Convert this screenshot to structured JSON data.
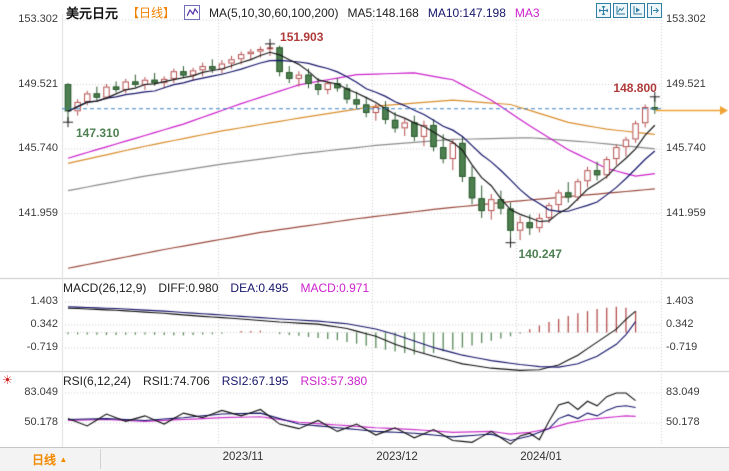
{
  "header": {
    "symbol": "美元日元",
    "period_tag": "【日线】",
    "ma_settings": "MA(5,10,30,60,100,200)",
    "ma5": "MA5:148.168",
    "ma10": "MA10:147.198",
    "ma30_truncated": "MA3"
  },
  "toolbar": {
    "icons": [
      "move-crosshair",
      "chart-scale",
      "chart-play",
      "export-right"
    ]
  },
  "axes": {
    "price_labels": [
      "153.302",
      "149.521",
      "145.740",
      "141.959"
    ],
    "macd_labels": [
      "1.403",
      "0.342",
      "-0.719"
    ],
    "rsi_labels": [
      "83.049",
      "50.178"
    ],
    "time_labels": [
      "2023/11",
      "2023/12",
      "2024/01"
    ]
  },
  "panels": {
    "macd_header": {
      "title": "MACD(26,12,9)",
      "diff": "DIFF:0.980",
      "dea": "DEA:0.495",
      "macd": "MACD:0.971"
    },
    "rsi_header": {
      "title": "RSI(6,12,24)",
      "rsi1": "RSI1:74.706",
      "rsi2": "RSI2:67.195",
      "rsi3": "RSI3:57.380"
    }
  },
  "footer": {
    "period_label": "日线",
    "arrow": "▲"
  },
  "colors": {
    "up": "#b5504f",
    "up_fill": "#ffffff",
    "down": "#4d7f4f",
    "down_border": "#2e5c31",
    "ma5": "#1a1a1a",
    "ma10": "#16166b",
    "ma30": "#cc22cc",
    "ma60": "#d98f2e",
    "ma100": "#8c8c8c",
    "ma200": "#9a4a3d",
    "grid": "#cfcfcf",
    "separator": "#c9c9c9",
    "dashed_line": "#3e86c9",
    "price_line": "#f0a232",
    "hist_up": "#b5504f",
    "hist_down": "#5a8a5a",
    "diff": "#111111",
    "dea": "#16166b",
    "rsi1": "#111111",
    "rsi2": "#16166b",
    "rsi3": "#cc33cc",
    "marker_cross": "#222222"
  },
  "chart_data": {
    "type": "candlestick",
    "title": "美元日元 日线 (USD/JPY daily)",
    "price_gridlines": [
      153.302,
      149.521,
      145.74,
      141.959
    ],
    "macd_gridlines": [
      1.403,
      0.342,
      -0.719
    ],
    "rsi_gridlines": [
      83.049,
      50.178
    ],
    "time_labels": [
      "2023/11",
      "2023/12",
      "2024/01"
    ],
    "candles": [
      [
        149.55,
        149.6,
        147.31,
        147.95
      ],
      [
        147.95,
        148.65,
        147.7,
        148.5
      ],
      [
        148.5,
        149.15,
        148.3,
        149.0
      ],
      [
        149.0,
        149.4,
        148.6,
        148.75
      ],
      [
        148.75,
        149.55,
        148.65,
        149.4
      ],
      [
        149.4,
        149.7,
        149.05,
        149.2
      ],
      [
        149.2,
        149.85,
        149.0,
        149.7
      ],
      [
        149.7,
        150.1,
        149.35,
        149.5
      ],
      [
        149.5,
        149.95,
        149.2,
        149.8
      ],
      [
        149.8,
        150.2,
        149.45,
        149.6
      ],
      [
        149.6,
        150.0,
        149.3,
        149.85
      ],
      [
        149.85,
        150.45,
        149.6,
        150.3
      ],
      [
        150.3,
        150.6,
        149.9,
        150.05
      ],
      [
        150.05,
        150.5,
        149.75,
        150.35
      ],
      [
        150.35,
        150.8,
        150.0,
        150.6
      ],
      [
        150.6,
        151.0,
        150.2,
        150.4
      ],
      [
        150.4,
        150.95,
        150.15,
        150.75
      ],
      [
        150.75,
        151.2,
        150.45,
        151.0
      ],
      [
        151.0,
        151.45,
        150.7,
        151.3
      ],
      [
        151.3,
        151.6,
        150.95,
        151.45
      ],
      [
        151.45,
        151.75,
        151.1,
        151.6
      ],
      [
        151.6,
        151.903,
        151.2,
        151.7
      ],
      [
        151.7,
        151.8,
        150.0,
        150.25
      ],
      [
        150.25,
        150.6,
        149.6,
        149.85
      ],
      [
        149.85,
        150.3,
        149.4,
        150.1
      ],
      [
        150.1,
        150.45,
        149.3,
        149.55
      ],
      [
        149.55,
        149.9,
        148.9,
        149.2
      ],
      [
        149.2,
        149.75,
        148.95,
        149.6
      ],
      [
        149.6,
        149.9,
        149.1,
        149.3
      ],
      [
        149.3,
        149.55,
        148.4,
        148.65
      ],
      [
        148.65,
        149.1,
        148.1,
        148.35
      ],
      [
        148.35,
        148.8,
        147.6,
        147.85
      ],
      [
        147.85,
        148.4,
        147.4,
        148.2
      ],
      [
        148.2,
        148.55,
        147.2,
        147.45
      ],
      [
        147.45,
        147.9,
        146.7,
        146.95
      ],
      [
        146.95,
        147.5,
        146.5,
        147.3
      ],
      [
        147.3,
        147.7,
        146.2,
        146.45
      ],
      [
        146.45,
        147.4,
        145.9,
        147.15
      ],
      [
        147.15,
        147.5,
        145.6,
        145.85
      ],
      [
        145.85,
        146.6,
        144.9,
        145.15
      ],
      [
        145.15,
        146.3,
        144.5,
        146.1
      ],
      [
        146.1,
        146.45,
        143.8,
        144.1
      ],
      [
        144.1,
        144.75,
        142.5,
        142.85
      ],
      [
        142.85,
        143.6,
        141.7,
        142.1
      ],
      [
        142.1,
        143.1,
        141.6,
        142.8
      ],
      [
        142.8,
        143.3,
        141.9,
        142.25
      ],
      [
        142.25,
        142.6,
        140.247,
        140.95
      ],
      [
        140.95,
        141.8,
        140.4,
        141.45
      ],
      [
        141.45,
        141.9,
        140.7,
        141.1
      ],
      [
        141.1,
        141.95,
        140.85,
        141.7
      ],
      [
        141.7,
        142.6,
        141.4,
        142.45
      ],
      [
        142.45,
        143.35,
        142.1,
        143.2
      ],
      [
        143.2,
        143.8,
        142.6,
        142.9
      ],
      [
        142.9,
        144.0,
        142.7,
        143.85
      ],
      [
        143.85,
        144.7,
        143.5,
        144.5
      ],
      [
        144.5,
        145.0,
        143.9,
        144.2
      ],
      [
        144.2,
        145.3,
        144.0,
        145.15
      ],
      [
        145.15,
        146.0,
        144.8,
        145.85
      ],
      [
        145.85,
        146.45,
        145.3,
        146.3
      ],
      [
        146.3,
        147.4,
        146.1,
        147.25
      ],
      [
        147.25,
        148.35,
        147.0,
        148.2
      ],
      [
        148.2,
        148.8,
        147.8,
        148.05
      ]
    ],
    "ma_overlays": {
      "ma30": [
        [
          0,
          145.2
        ],
        [
          6,
          146.2
        ],
        [
          12,
          147.2
        ],
        [
          18,
          148.4
        ],
        [
          24,
          149.5
        ],
        [
          30,
          150.1
        ],
        [
          36,
          150.2
        ],
        [
          40,
          149.8
        ],
        [
          44,
          148.6
        ],
        [
          48,
          147.1
        ],
        [
          52,
          145.7
        ],
        [
          56,
          144.6
        ],
        [
          59,
          144.15
        ],
        [
          61,
          144.3
        ]
      ],
      "ma60": [
        [
          0,
          144.9
        ],
        [
          8,
          145.9
        ],
        [
          16,
          146.8
        ],
        [
          24,
          147.55
        ],
        [
          32,
          148.25
        ],
        [
          40,
          148.6
        ],
        [
          46,
          148.35
        ],
        [
          52,
          147.3
        ],
        [
          56,
          146.9
        ],
        [
          61,
          146.6
        ]
      ],
      "ma100": [
        [
          0,
          143.3
        ],
        [
          8,
          144.15
        ],
        [
          16,
          144.85
        ],
        [
          24,
          145.45
        ],
        [
          32,
          145.95
        ],
        [
          40,
          146.3
        ],
        [
          48,
          146.4
        ],
        [
          54,
          146.15
        ],
        [
          61,
          145.75
        ]
      ],
      "ma200": [
        [
          0,
          138.75
        ],
        [
          10,
          139.85
        ],
        [
          20,
          140.85
        ],
        [
          30,
          141.65
        ],
        [
          38,
          142.2
        ],
        [
          46,
          142.65
        ],
        [
          54,
          143.05
        ],
        [
          61,
          143.4
        ]
      ]
    },
    "price_lines": {
      "dashed_blue": 148.1,
      "solid_orange": 148.0
    },
    "macd": {
      "last_index": 59,
      "diff": [
        [
          0,
          1.12
        ],
        [
          5,
          1.02
        ],
        [
          10,
          0.88
        ],
        [
          14,
          0.74
        ],
        [
          18,
          0.62
        ],
        [
          22,
          0.48
        ],
        [
          26,
          0.38
        ],
        [
          29,
          0.18
        ],
        [
          32,
          -0.18
        ],
        [
          34,
          -0.55
        ],
        [
          36,
          -0.85
        ],
        [
          38,
          -1.1
        ],
        [
          41,
          -1.45
        ],
        [
          44,
          -1.65
        ],
        [
          47,
          -1.75
        ],
        [
          49,
          -1.72
        ],
        [
          51,
          -1.5
        ],
        [
          53,
          -1.05
        ],
        [
          55,
          -0.45
        ],
        [
          57,
          0.15
        ],
        [
          58,
          0.6
        ],
        [
          59,
          0.98
        ]
      ],
      "dea": [
        [
          0,
          1.18
        ],
        [
          5,
          1.1
        ],
        [
          10,
          0.98
        ],
        [
          14,
          0.86
        ],
        [
          18,
          0.74
        ],
        [
          22,
          0.62
        ],
        [
          26,
          0.52
        ],
        [
          29,
          0.4
        ],
        [
          32,
          0.16
        ],
        [
          34,
          -0.1
        ],
        [
          36,
          -0.4
        ],
        [
          38,
          -0.7
        ],
        [
          41,
          -1.05
        ],
        [
          44,
          -1.3
        ],
        [
          47,
          -1.48
        ],
        [
          49,
          -1.58
        ],
        [
          51,
          -1.6
        ],
        [
          53,
          -1.45
        ],
        [
          55,
          -1.1
        ],
        [
          57,
          -0.55
        ],
        [
          58,
          -0.1
        ],
        [
          59,
          0.495
        ]
      ],
      "hist": [
        [
          0,
          -0.08
        ],
        [
          4,
          -0.12
        ],
        [
          8,
          -0.1
        ],
        [
          12,
          -0.14
        ],
        [
          16,
          -0.06
        ],
        [
          18,
          0.06
        ],
        [
          20,
          0.08
        ],
        [
          22,
          -0.08
        ],
        [
          24,
          -0.16
        ],
        [
          26,
          -0.26
        ],
        [
          28,
          -0.36
        ],
        [
          30,
          -0.52
        ],
        [
          32,
          -0.72
        ],
        [
          34,
          -0.88
        ],
        [
          36,
          -1.02
        ],
        [
          38,
          -0.95
        ],
        [
          40,
          -0.8
        ],
        [
          42,
          -0.6
        ],
        [
          44,
          -0.38
        ],
        [
          46,
          -0.18
        ],
        [
          47,
          -0.06
        ],
        [
          48,
          0.14
        ],
        [
          49,
          0.32
        ],
        [
          50,
          0.48
        ],
        [
          51,
          0.62
        ],
        [
          52,
          0.76
        ],
        [
          53,
          0.88
        ],
        [
          54,
          0.98
        ],
        [
          55,
          1.08
        ],
        [
          56,
          1.14
        ],
        [
          57,
          1.18
        ],
        [
          58,
          1.14
        ],
        [
          59,
          0.971
        ]
      ]
    },
    "rsi": {
      "last_index": 59,
      "rsi1": [
        [
          0,
          55
        ],
        [
          2,
          47
        ],
        [
          4,
          60
        ],
        [
          6,
          52
        ],
        [
          8,
          58
        ],
        [
          10,
          49
        ],
        [
          12,
          61
        ],
        [
          14,
          56
        ],
        [
          16,
          64
        ],
        [
          18,
          58
        ],
        [
          20,
          65
        ],
        [
          22,
          49
        ],
        [
          24,
          44
        ],
        [
          26,
          53
        ],
        [
          28,
          41
        ],
        [
          30,
          49
        ],
        [
          32,
          37
        ],
        [
          34,
          45
        ],
        [
          36,
          34
        ],
        [
          38,
          43
        ],
        [
          40,
          31
        ],
        [
          42,
          29
        ],
        [
          44,
          41
        ],
        [
          46,
          27
        ],
        [
          47,
          36
        ],
        [
          48,
          39
        ],
        [
          49,
          32
        ],
        [
          50,
          52
        ],
        [
          51,
          70
        ],
        [
          52,
          73
        ],
        [
          53,
          65
        ],
        [
          54,
          74
        ],
        [
          55,
          69
        ],
        [
          56,
          79
        ],
        [
          57,
          83
        ],
        [
          58,
          83
        ],
        [
          59,
          74.706
        ]
      ],
      "rsi2": [
        [
          0,
          54
        ],
        [
          4,
          55
        ],
        [
          8,
          53
        ],
        [
          12,
          56
        ],
        [
          16,
          60
        ],
        [
          20,
          61
        ],
        [
          24,
          49
        ],
        [
          28,
          45
        ],
        [
          32,
          41
        ],
        [
          36,
          39
        ],
        [
          40,
          35
        ],
        [
          44,
          38
        ],
        [
          46,
          31
        ],
        [
          48,
          36
        ],
        [
          50,
          44
        ],
        [
          51,
          55
        ],
        [
          52,
          59
        ],
        [
          53,
          55
        ],
        [
          54,
          61
        ],
        [
          55,
          58
        ],
        [
          56,
          64
        ],
        [
          57,
          68
        ],
        [
          58,
          69
        ],
        [
          59,
          67.195
        ]
      ],
      "rsi3": [
        [
          0,
          53
        ],
        [
          4,
          54
        ],
        [
          8,
          52
        ],
        [
          12,
          54
        ],
        [
          16,
          56
        ],
        [
          20,
          57
        ],
        [
          24,
          51
        ],
        [
          28,
          48
        ],
        [
          32,
          45
        ],
        [
          36,
          43
        ],
        [
          40,
          40
        ],
        [
          44,
          41
        ],
        [
          46,
          38
        ],
        [
          48,
          40
        ],
        [
          50,
          44
        ],
        [
          52,
          50
        ],
        [
          54,
          54
        ],
        [
          56,
          56
        ],
        [
          58,
          58
        ],
        [
          59,
          57.38
        ]
      ]
    },
    "annotations": [
      {
        "text": "151.903",
        "index": 21,
        "price": 151.903,
        "placement": "above-right",
        "color": "#b03a3a"
      },
      {
        "text": "147.310",
        "index": 0,
        "price": 147.31,
        "placement": "below-right",
        "color": "#4e8052"
      },
      {
        "text": "140.247",
        "index": 46,
        "price": 140.247,
        "placement": "below-right",
        "color": "#4e8052"
      },
      {
        "text": "148.800",
        "index": 61,
        "price": 148.8,
        "placement": "above-left",
        "color": "#b03a3a"
      }
    ]
  }
}
